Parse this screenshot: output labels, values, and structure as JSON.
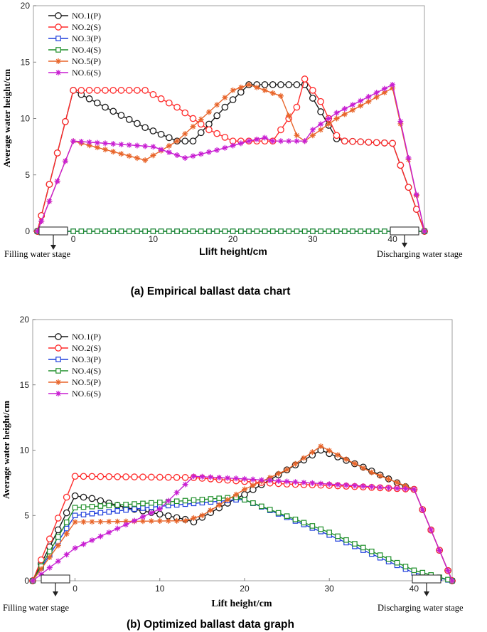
{
  "colors": {
    "NO.1": "#1a1a1a",
    "NO.2": "#ff2a2a",
    "NO.3": "#1f3fdc",
    "NO.4": "#1f8f2a",
    "NO.5": "#e8652a",
    "NO.6": "#c81ed2"
  },
  "chart_data": [
    {
      "type": "line",
      "title": "(a) Empirical ballast data chart",
      "xlabel": "Llift height/cm",
      "ylabel": "Average water height/cm",
      "xlim": [
        -5,
        44
      ],
      "ylim": [
        0,
        20
      ],
      "xticks": [
        0,
        10,
        20,
        30,
        40
      ],
      "yticks": [
        0,
        5,
        10,
        15,
        20
      ],
      "stage_labels": {
        "filling": "Filling water stage",
        "discharging": "Discharging water stage"
      },
      "legend": [
        "NO.1(P)",
        "NO.2(S)",
        "NO.3(P)",
        "NO.4(S)",
        "NO.5(P)",
        "NO.6(S)"
      ],
      "series": [
        {
          "name": "NO.1(P)",
          "key": "NO.1",
          "marker": "o",
          "step": 1,
          "points": [
            [
              -4.5,
              0
            ],
            [
              0,
              12.5
            ],
            [
              4,
              11
            ],
            [
              9,
              9.2
            ],
            [
              13,
              8
            ],
            [
              15,
              8
            ],
            [
              19,
              11
            ],
            [
              22,
              13
            ],
            [
              23,
              13
            ],
            [
              28,
              13
            ],
            [
              29,
              13
            ],
            [
              33,
              8.2
            ],
            [
              34,
              8
            ],
            [
              40,
              7.8
            ],
            [
              44,
              0
            ]
          ]
        },
        {
          "name": "NO.2(S)",
          "key": "NO.2",
          "marker": "o",
          "step": 1,
          "points": [
            [
              -4.5,
              0
            ],
            [
              0,
              12.5
            ],
            [
              9,
              12.5
            ],
            [
              13,
              11
            ],
            [
              17,
              9
            ],
            [
              20,
              8
            ],
            [
              25,
              8
            ],
            [
              28,
              11
            ],
            [
              29,
              13.5
            ],
            [
              31,
              11.5
            ],
            [
              33,
              8.5
            ],
            [
              34,
              8
            ],
            [
              40,
              7.8
            ],
            [
              44,
              0
            ]
          ]
        },
        {
          "name": "NO.3(P)",
          "key": "NO.3",
          "marker": "s",
          "step": 1,
          "points": [
            [
              -4.5,
              0
            ],
            [
              44,
              0
            ]
          ]
        },
        {
          "name": "NO.4(S)",
          "key": "NO.4",
          "marker": "s",
          "step": 1,
          "points": [
            [
              -4.5,
              0
            ],
            [
              44,
              0
            ]
          ]
        },
        {
          "name": "NO.5(P)",
          "key": "NO.5",
          "marker": "*",
          "step": 1,
          "points": [
            [
              -4.5,
              0
            ],
            [
              0,
              8
            ],
            [
              9,
              6.3
            ],
            [
              13,
              8
            ],
            [
              20,
              12.5
            ],
            [
              22,
              13
            ],
            [
              26,
              12
            ],
            [
              28,
              8.5
            ],
            [
              29,
              8
            ],
            [
              33,
              10
            ],
            [
              37,
              11.5
            ],
            [
              40,
              12.7
            ],
            [
              44,
              0
            ]
          ]
        },
        {
          "name": "NO.6(S)",
          "key": "NO.6",
          "marker": "*",
          "step": 1,
          "points": [
            [
              -4.5,
              0
            ],
            [
              0,
              8
            ],
            [
              10,
              7.5
            ],
            [
              14,
              6.5
            ],
            [
              18,
              7.2
            ],
            [
              22,
              8
            ],
            [
              24,
              8.3
            ],
            [
              25,
              8
            ],
            [
              29,
              8
            ],
            [
              30,
              9
            ],
            [
              33,
              10.5
            ],
            [
              40,
              13
            ],
            [
              44,
              0
            ]
          ]
        }
      ]
    },
    {
      "type": "line",
      "title": "(b) Optimized ballast data graph",
      "xlabel": "Lift height/cm",
      "ylabel": "Average water height/cm",
      "xlim": [
        -5,
        44.5
      ],
      "ylim": [
        0,
        20
      ],
      "xticks": [
        0,
        10,
        20,
        30,
        40
      ],
      "yticks": [
        0,
        5,
        10,
        15,
        20
      ],
      "stage_labels": {
        "filling": "Filling water stage",
        "discharging": "Discharging water stage"
      },
      "legend": [
        "NO.1(P)",
        "NO.2(S)",
        "NO.3(P)",
        "NO.4(S)",
        "NO.5(P)",
        "NO.6(S)"
      ],
      "series": [
        {
          "name": "NO.1(P)",
          "key": "NO.1",
          "marker": "o",
          "step": 1,
          "points": [
            [
              -5,
              0
            ],
            [
              0,
              6.5
            ],
            [
              2,
              6.3
            ],
            [
              6,
              5.6
            ],
            [
              10,
              5.1
            ],
            [
              13,
              4.7
            ],
            [
              14,
              4.5
            ],
            [
              19,
              6.3
            ],
            [
              20,
              6.6
            ],
            [
              29,
              10
            ],
            [
              34,
              8.7
            ],
            [
              39,
              7.2
            ],
            [
              40,
              7
            ],
            [
              44.5,
              0
            ]
          ]
        },
        {
          "name": "NO.2(S)",
          "key": "NO.2",
          "marker": "o",
          "step": 1,
          "points": [
            [
              -5,
              0
            ],
            [
              0,
              8
            ],
            [
              14,
              7.9
            ],
            [
              20,
              7.6
            ],
            [
              25,
              7.4
            ],
            [
              30,
              7.3
            ],
            [
              40,
              7
            ],
            [
              44.5,
              0
            ]
          ]
        },
        {
          "name": "NO.3(P)",
          "key": "NO.3",
          "marker": "s",
          "step": 1,
          "points": [
            [
              -5,
              0
            ],
            [
              0,
              5
            ],
            [
              10,
              5.7
            ],
            [
              19,
              6.2
            ],
            [
              20,
              6.2
            ],
            [
              30,
              3.5
            ],
            [
              40,
              0.6
            ],
            [
              44.5,
              0
            ]
          ]
        },
        {
          "name": "NO.4(S)",
          "key": "NO.4",
          "marker": "s",
          "step": 1,
          "points": [
            [
              -5,
              0
            ],
            [
              0,
              5.6
            ],
            [
              10,
              6
            ],
            [
              19,
              6.4
            ],
            [
              20,
              6.2
            ],
            [
              30,
              3.7
            ],
            [
              40,
              0.8
            ],
            [
              44.5,
              0
            ]
          ]
        },
        {
          "name": "NO.5(P)",
          "key": "NO.5",
          "marker": "*",
          "step": 1,
          "points": [
            [
              -5,
              0
            ],
            [
              0,
              4.5
            ],
            [
              13,
              4.6
            ],
            [
              15,
              5
            ],
            [
              20,
              7
            ],
            [
              25,
              8.5
            ],
            [
              29,
              10.3
            ],
            [
              35,
              8.3
            ],
            [
              40,
              7
            ],
            [
              44.5,
              0
            ]
          ]
        },
        {
          "name": "NO.6(S)",
          "key": "NO.6",
          "marker": "*",
          "step": 1,
          "points": [
            [
              -5,
              0
            ],
            [
              0,
              2.5
            ],
            [
              10,
              5.5
            ],
            [
              14,
              8
            ],
            [
              20,
              7.8
            ],
            [
              30,
              7.4
            ],
            [
              40,
              7
            ],
            [
              44.5,
              0
            ]
          ]
        }
      ]
    }
  ]
}
